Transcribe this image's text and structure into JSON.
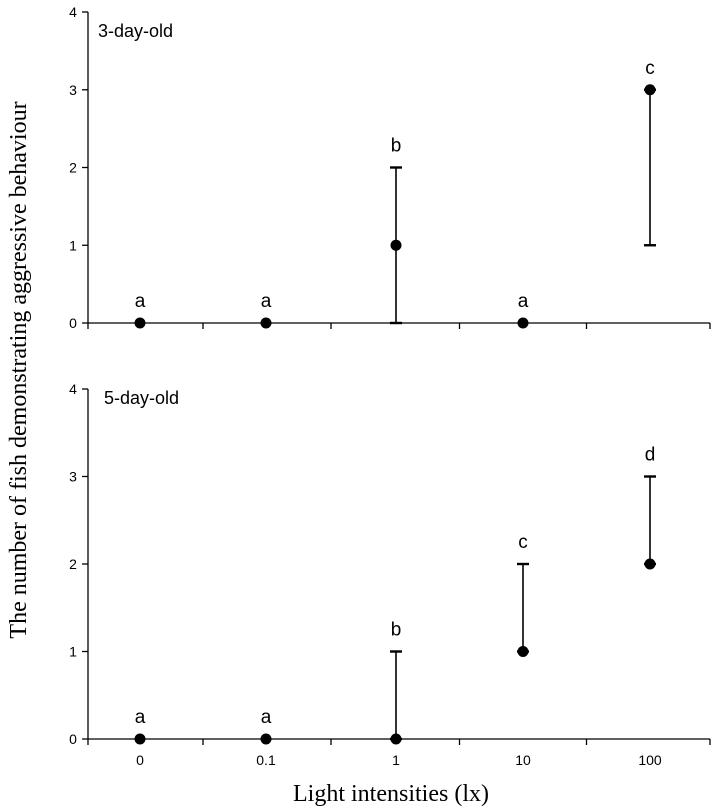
{
  "chart_data": [
    {
      "type": "scatter",
      "title": "3-day-old",
      "categories": [
        "0",
        "0.1",
        "1",
        "10",
        "100"
      ],
      "values": [
        0,
        0,
        1,
        0,
        3
      ],
      "error_low": [
        0,
        0,
        0,
        0,
        1
      ],
      "error_high": [
        0,
        0,
        2,
        0,
        3
      ],
      "letters": [
        "a",
        "a",
        "b",
        "a",
        "c"
      ],
      "ylim": [
        0,
        4
      ],
      "yticks": [
        "0",
        "1",
        "2",
        "3",
        "4"
      ]
    },
    {
      "type": "scatter",
      "title": "5-day-old",
      "categories": [
        "0",
        "0.1",
        "1",
        "10",
        "100"
      ],
      "values": [
        0,
        0,
        0,
        1,
        2
      ],
      "error_low": [
        0,
        0,
        0,
        1,
        2
      ],
      "error_high": [
        0,
        0,
        1,
        2,
        3
      ],
      "letters": [
        "a",
        "a",
        "b",
        "c",
        "d"
      ],
      "ylim": [
        0,
        4
      ],
      "yticks": [
        "0",
        "1",
        "2",
        "3",
        "4"
      ]
    }
  ],
  "xlabel": "Light intensities (lx)",
  "ylabel": "The number of fish demonstrating aggressive behaviour"
}
